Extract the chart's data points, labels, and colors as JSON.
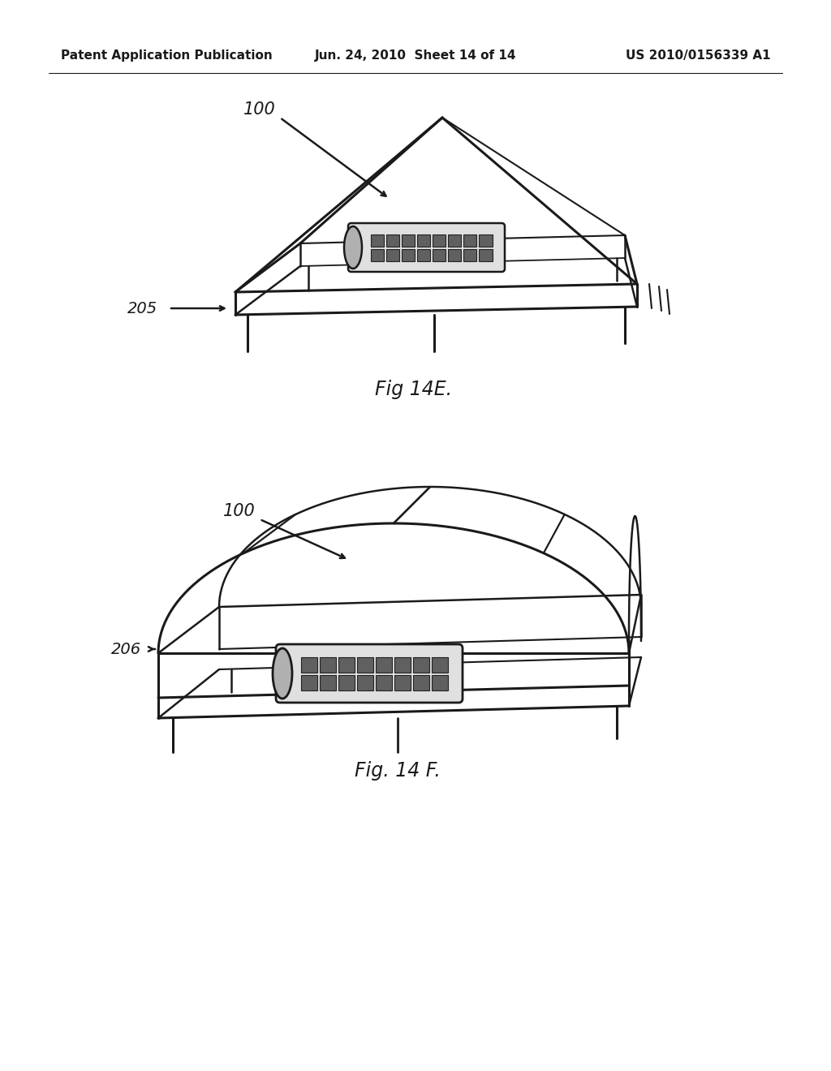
{
  "background_color": "#ffffff",
  "lc": "#1a1a1a",
  "header": {
    "left": "Patent Application Publication",
    "center": "Jun. 24, 2010  Sheet 14 of 14",
    "right": "US 2010/0156339 A1",
    "fontsize": 11
  }
}
